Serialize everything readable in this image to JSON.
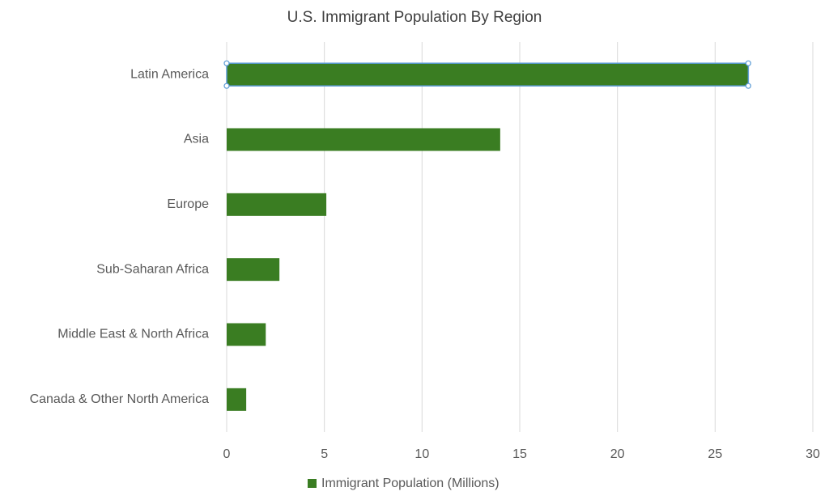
{
  "chart_data": {
    "type": "bar",
    "orientation": "horizontal",
    "title": "U.S. Immigrant Population By Region",
    "categories": [
      "Latin America",
      "Asia",
      "Europe",
      "Sub-Saharan Africa",
      "Middle East & North Africa",
      "Canada & Other North America"
    ],
    "series": [
      {
        "name": "Immigrant Population (Millions)",
        "color": "#3a7d22",
        "values": [
          26.7,
          14.0,
          5.1,
          2.7,
          2.0,
          1.0
        ]
      }
    ],
    "xlim": [
      0,
      30
    ],
    "xticks": [
      0,
      5,
      10,
      15,
      20,
      25,
      30
    ],
    "grid": true,
    "legend": "bottom"
  }
}
